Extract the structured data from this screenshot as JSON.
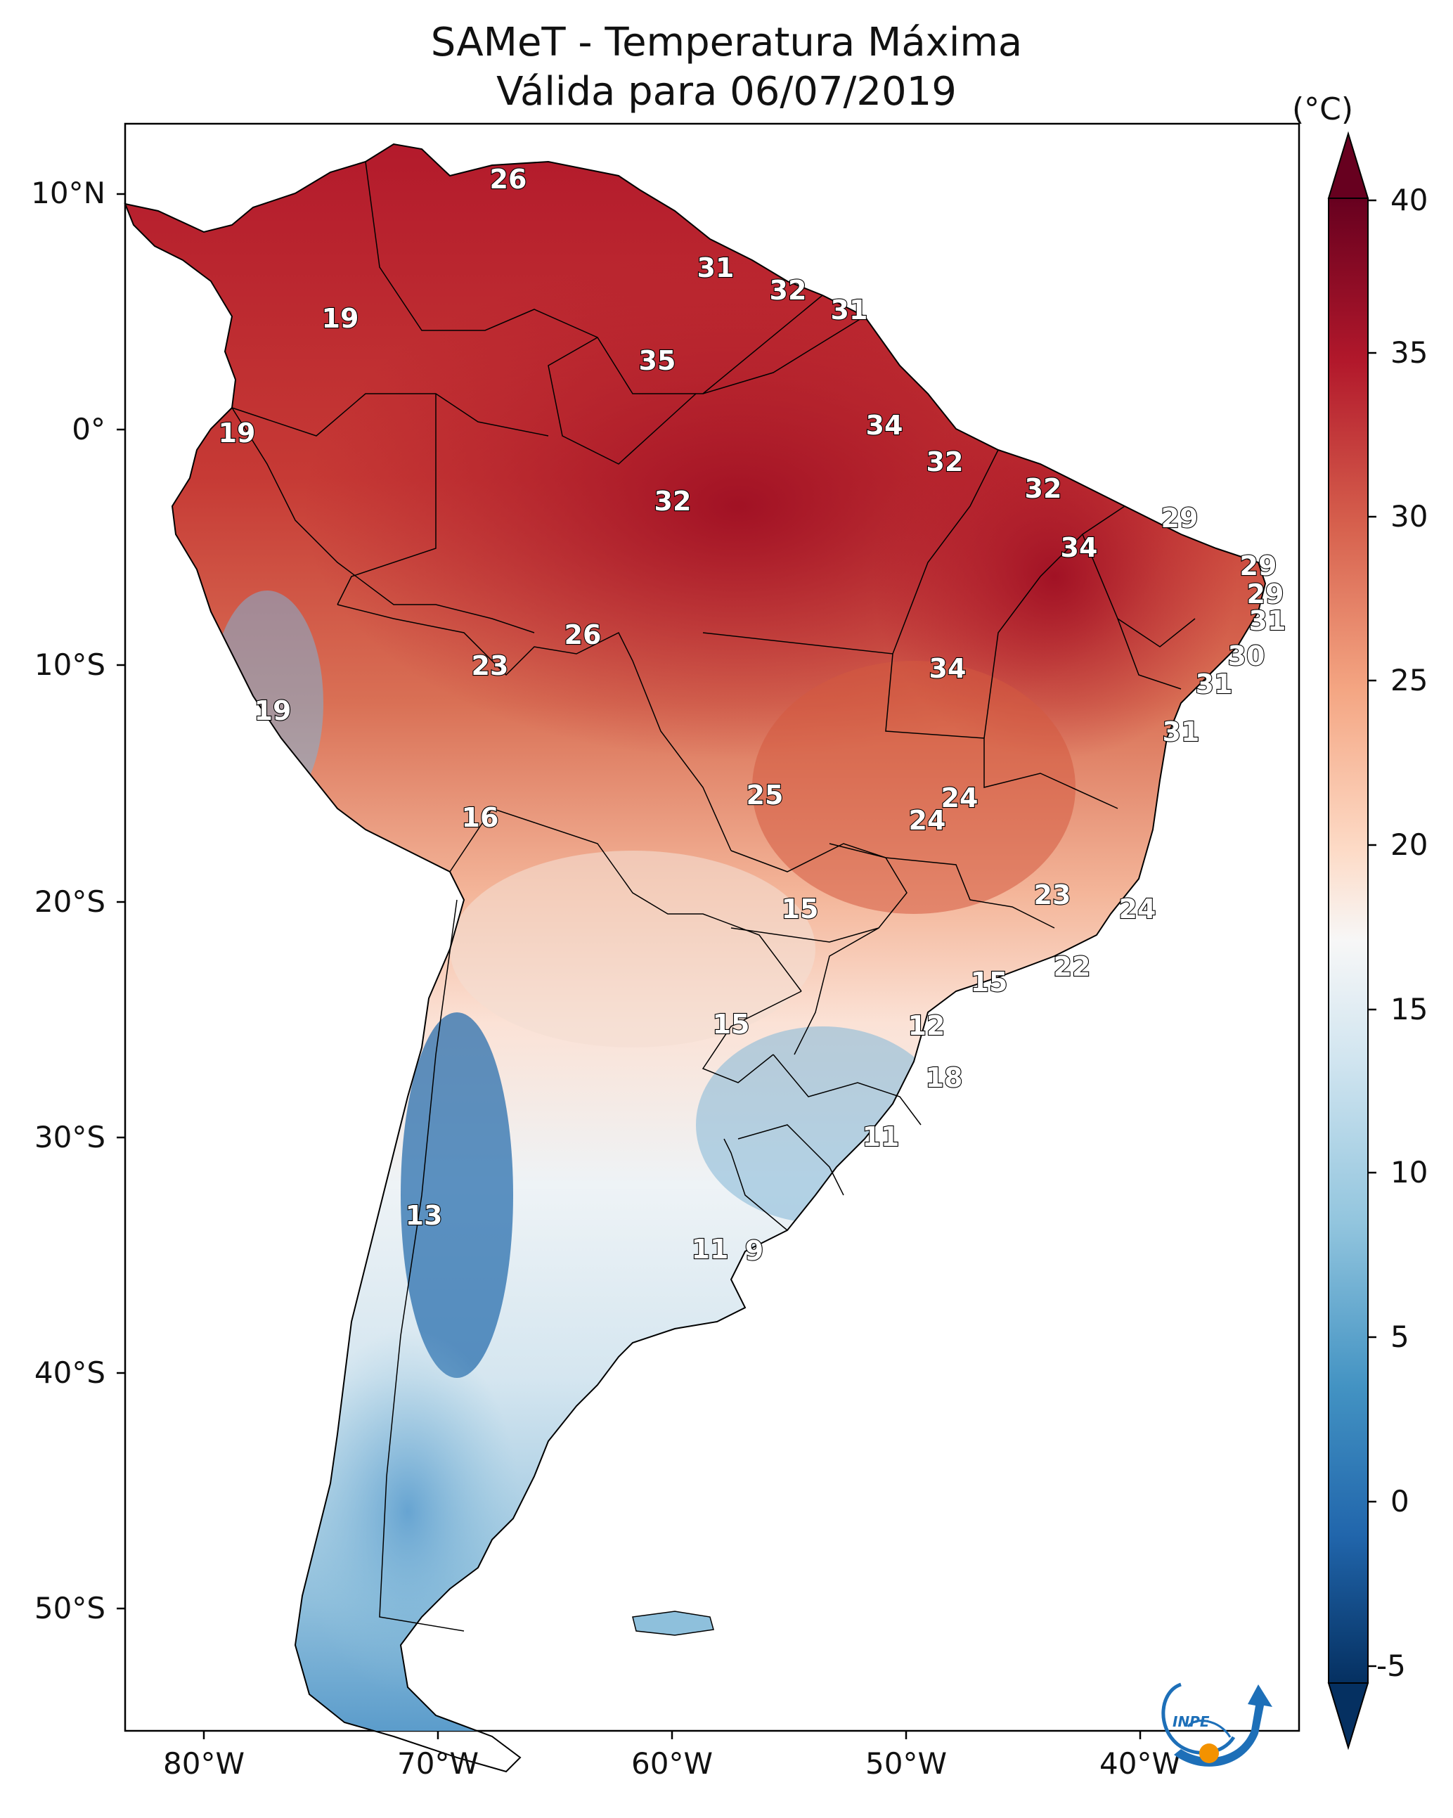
{
  "title": {
    "line1": "SAMeT - Temperatura Máxima",
    "line2": "Válida para 06/07/2019"
  },
  "axes": {
    "lat_ticks": [
      "10°N",
      "0°",
      "10°S",
      "20°S",
      "30°S",
      "40°S",
      "50°S"
    ],
    "lon_ticks": [
      "80°W",
      "70°W",
      "60°W",
      "50°W",
      "40°W"
    ]
  },
  "colorbar": {
    "unit": "(°C)",
    "ticks": [
      "40",
      "35",
      "30",
      "25",
      "20",
      "15",
      "10",
      "5",
      "0",
      "-5"
    ],
    "colors": [
      "#67001f",
      "#b2182b",
      "#d6604d",
      "#f4a582",
      "#fddbc7",
      "#f7f7f7",
      "#d1e5f0",
      "#92c5de",
      "#4393c3",
      "#2166ac",
      "#053061"
    ]
  },
  "logo": {
    "text": "INPE"
  },
  "map_labels": [
    {
      "id": "26-caribe",
      "value": "26"
    },
    {
      "id": "31-venezuela",
      "value": "31"
    },
    {
      "id": "32-guyana",
      "value": "32"
    },
    {
      "id": "31-suriname",
      "value": "31"
    },
    {
      "id": "35-roraima",
      "value": "35"
    },
    {
      "id": "19-colombia",
      "value": "19"
    },
    {
      "id": "19-ecuador",
      "value": "19"
    },
    {
      "id": "34-amapa",
      "value": "34"
    },
    {
      "id": "32-para-norte",
      "value": "32"
    },
    {
      "id": "32-maranhao",
      "value": "32"
    },
    {
      "id": "32-amazonas",
      "value": "32"
    },
    {
      "id": "29-ceara",
      "value": "29"
    },
    {
      "id": "34-piaui",
      "value": "34"
    },
    {
      "id": "29-rn",
      "value": "29"
    },
    {
      "id": "29-pb",
      "value": "29"
    },
    {
      "id": "31-pe",
      "value": "31"
    },
    {
      "id": "26-rondonia",
      "value": "26"
    },
    {
      "id": "23-bolivia-norte",
      "value": "23"
    },
    {
      "id": "34-tocantins",
      "value": "34"
    },
    {
      "id": "30-al",
      "value": "30"
    },
    {
      "id": "31-se",
      "value": "31"
    },
    {
      "id": "19-peru",
      "value": "19"
    },
    {
      "id": "31-bahia",
      "value": "31"
    },
    {
      "id": "25-mato-grosso",
      "value": "25"
    },
    {
      "id": "24-goias-a",
      "value": "24"
    },
    {
      "id": "24-goias-b",
      "value": "24"
    },
    {
      "id": "16-bolivia",
      "value": "16"
    },
    {
      "id": "15-ms",
      "value": "15"
    },
    {
      "id": "23-mg",
      "value": "23"
    },
    {
      "id": "24-es",
      "value": "24"
    },
    {
      "id": "22-rj",
      "value": "22"
    },
    {
      "id": "15-sp",
      "value": "15"
    },
    {
      "id": "15-paraguay",
      "value": "15"
    },
    {
      "id": "12-pr",
      "value": "12"
    },
    {
      "id": "18-sc",
      "value": "18"
    },
    {
      "id": "11-rs",
      "value": "11"
    },
    {
      "id": "13-chile",
      "value": "13"
    },
    {
      "id": "11-uruguay",
      "value": "11"
    },
    {
      "id": "9-uruguay",
      "value": "9"
    }
  ]
}
